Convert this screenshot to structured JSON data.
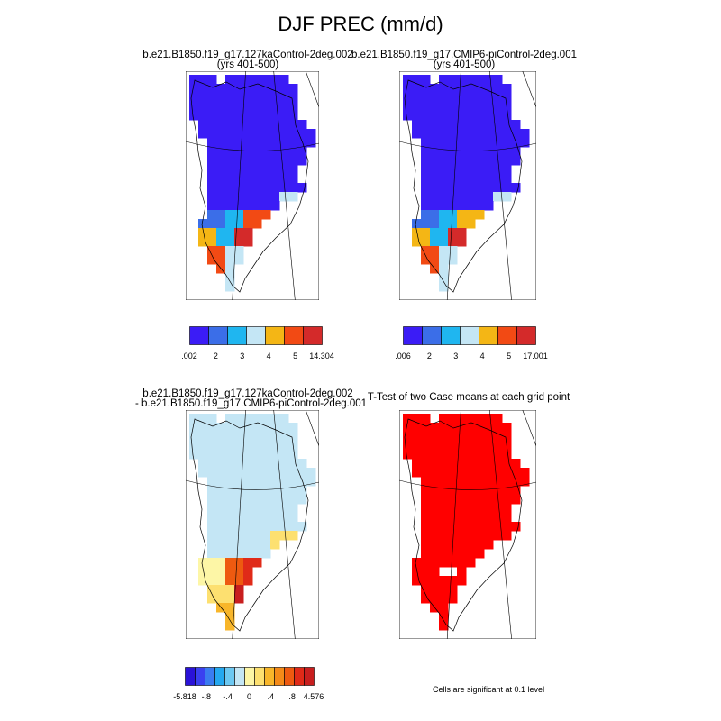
{
  "title": "DJF PREC (mm/d)",
  "panels": [
    {
      "id": "a",
      "title_line1": "b.e21.B1850.f19_g17.127kaControl-2deg.002",
      "title_line2": "(yrs 401-500)",
      "colors": [
        "#3b1cf6",
        "#3b6ee8",
        "#1fb6f0",
        "#c4e6f5",
        "#f4b615",
        "#f24a14",
        "#d42a2a"
      ],
      "labels": [
        ".002",
        "2",
        "3",
        "4",
        "5",
        "14.304"
      ]
    },
    {
      "id": "b",
      "title_line1": "b.e21.B1850.f19_g17.CMIP6-piControl-2deg.001",
      "title_line2": "(yrs 401-500)",
      "colors": [
        "#3b1cf6",
        "#3b6ee8",
        "#1fb6f0",
        "#c4e6f5",
        "#f4b615",
        "#f24a14",
        "#d42a2a"
      ],
      "labels": [
        ".006",
        "2",
        "3",
        "4",
        "5",
        "17.001"
      ]
    },
    {
      "id": "c",
      "title_line1": "b.e21.B1850.f19_g17.127kaControl-2deg.002",
      "title_line2": "- b.e21.B1850.f19_g17.CMIP6-piControl-2deg.001",
      "colors": [
        "#2a12d8",
        "#3a40f0",
        "#3a7cf0",
        "#24a8f0",
        "#6cc8f2",
        "#c4e6f5",
        "#fdf6a6",
        "#fde070",
        "#f8b62a",
        "#f48a18",
        "#ee5a10",
        "#e02a18",
        "#c81e1e"
      ],
      "labels": [
        "-5.818",
        "-.8",
        "-.4",
        "0",
        ".4",
        ".8",
        "4.576"
      ]
    },
    {
      "id": "d",
      "title_line1": "T-Test of two Case means at each grid point",
      "note": "Cells are significant at 0.1 level"
    }
  ],
  "chart_data": [
    {
      "type": "heatmap",
      "title": "b.e21.B1850.f19_g17.127kaControl-2deg.002 (yrs 401-500)",
      "region": "Greenland",
      "colorbar_labels": [
        ".002",
        "2",
        "3",
        "4",
        "5",
        "14.304"
      ],
      "levels": [
        0.002,
        2,
        3,
        4,
        5,
        14.304
      ],
      "min": 0.002,
      "max": 14.304
    },
    {
      "type": "heatmap",
      "title": "b.e21.B1850.f19_g17.CMIP6-piControl-2deg.001 (yrs 401-500)",
      "region": "Greenland",
      "colorbar_labels": [
        ".006",
        "2",
        "3",
        "4",
        "5",
        "17.001"
      ],
      "levels": [
        0.006,
        2,
        3,
        4,
        5,
        17.001
      ],
      "min": 0.006,
      "max": 17.001
    },
    {
      "type": "heatmap",
      "title": "b.e21.B1850.f19_g17.127kaControl-2deg.002 - b.e21.B1850.f19_g17.CMIP6-piControl-2deg.001",
      "region": "Greenland",
      "colorbar_labels": [
        "-5.818",
        "-.8",
        "-.4",
        "0",
        ".4",
        ".8",
        "4.576"
      ],
      "levels": [
        -5.818,
        -0.8,
        -0.4,
        0,
        0.4,
        0.8,
        4.576
      ],
      "min": -5.818,
      "max": 4.576
    },
    {
      "type": "heatmap",
      "title": "T-Test of two Case means at each grid point",
      "region": "Greenland",
      "annotation": "Cells are significant at 0.1 level"
    }
  ]
}
